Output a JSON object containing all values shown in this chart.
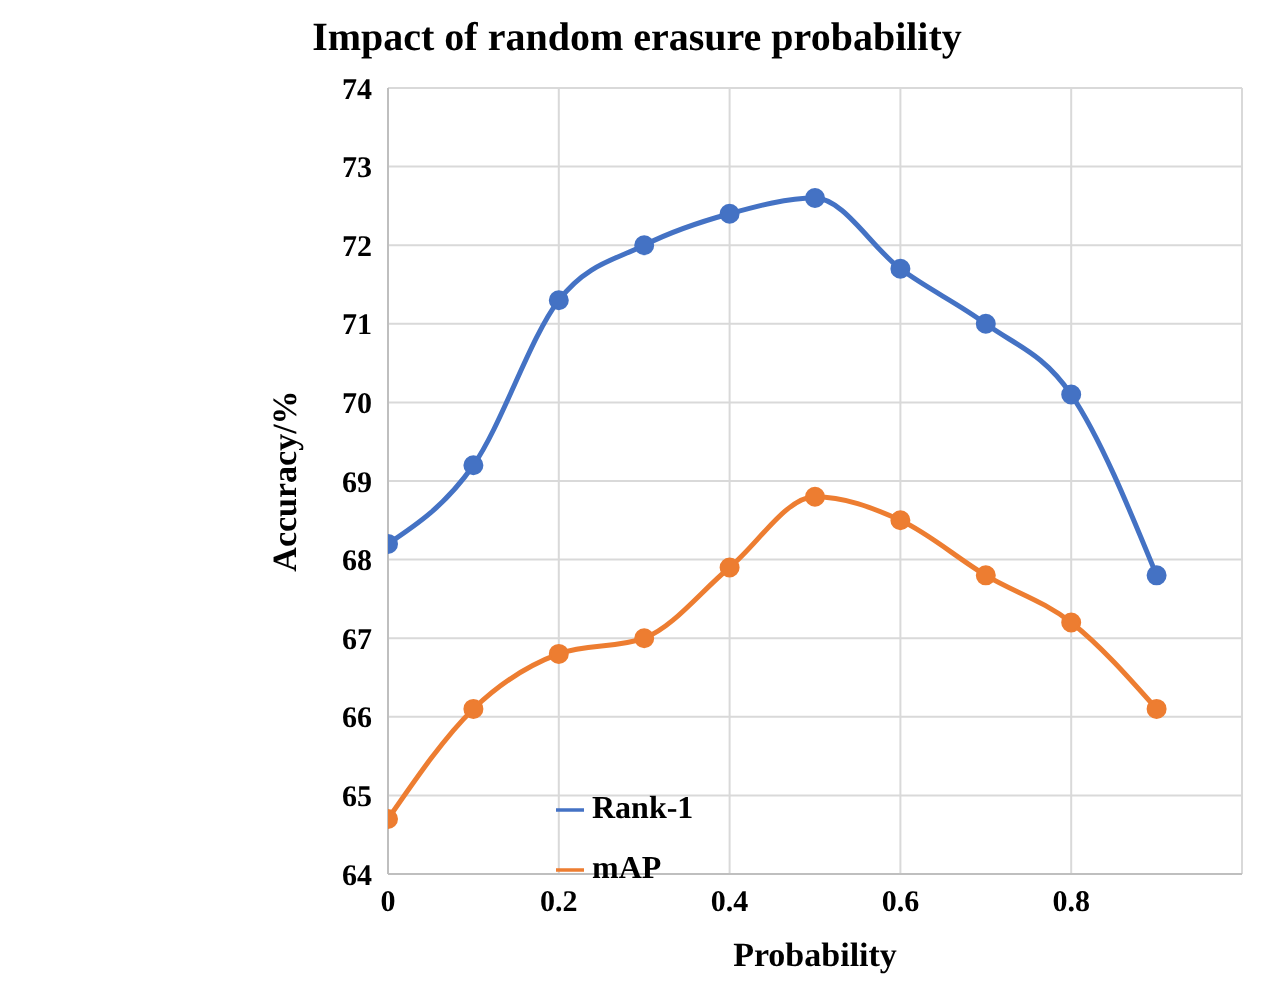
{
  "chart_data": {
    "type": "line",
    "title": "Impact  of random erasure probability",
    "xlabel": "Probability",
    "ylabel": "Accuracy/%",
    "x": [
      0,
      0.1,
      0.2,
      0.3,
      0.4,
      0.5,
      0.6,
      0.7,
      0.8,
      0.9
    ],
    "series": [
      {
        "name": "Rank-1",
        "color": "#4472c4",
        "values": [
          68.2,
          69.2,
          71.3,
          72.0,
          72.4,
          72.6,
          71.7,
          71.0,
          70.1,
          67.8
        ]
      },
      {
        "name": "mAP",
        "color": "#ed7d31",
        "values": [
          64.7,
          66.1,
          66.8,
          67.0,
          67.9,
          68.8,
          68.5,
          67.8,
          67.2,
          66.1
        ]
      }
    ],
    "xlim": [
      0,
      1
    ],
    "xticks": [
      0,
      0.2,
      0.4,
      0.6,
      0.8
    ],
    "ylim": [
      64,
      74
    ],
    "yticks": [
      64,
      65,
      66,
      67,
      68,
      69,
      70,
      71,
      72,
      73,
      74
    ],
    "grid": true,
    "legend": "bottom",
    "marker": "circle",
    "line_style": "solid"
  }
}
